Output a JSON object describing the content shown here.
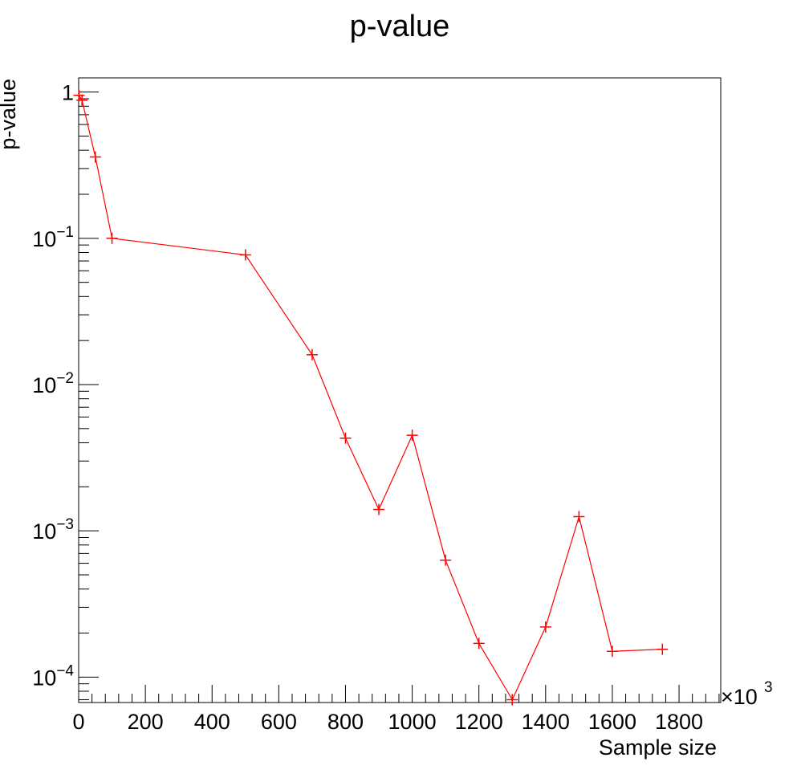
{
  "chart_data": {
    "type": "line",
    "title": "p-value",
    "xlabel": "Sample size",
    "ylabel": "p-value",
    "x_multiplier_label": "×10",
    "x_multiplier_exponent": "3",
    "xlim": [
      0,
      1925
    ],
    "ylim": [
      6.7e-05,
      1.25
    ],
    "y_scale": "log",
    "grid": false,
    "x_ticks": [
      0,
      200,
      400,
      600,
      800,
      1000,
      1200,
      1400,
      1600,
      1800
    ],
    "x_tick_labels": [
      "0",
      "200",
      "400",
      "600",
      "800",
      "1000",
      "1200",
      "1400",
      "1600",
      "1800"
    ],
    "y_ticks": [
      {
        "value": 1,
        "base": "1",
        "exp": ""
      },
      {
        "value": 0.1,
        "base": "10",
        "exp": "−1"
      },
      {
        "value": 0.01,
        "base": "10",
        "exp": "−2"
      },
      {
        "value": 0.001,
        "base": "10",
        "exp": "−3"
      },
      {
        "value": 0.0001,
        "base": "10",
        "exp": "−4"
      }
    ],
    "series": [
      {
        "color": "#ff0000",
        "marker": "plus",
        "x": [
          1,
          10,
          50,
          100,
          500,
          700,
          800,
          900,
          1000,
          1100,
          1200,
          1300,
          1400,
          1500,
          1600,
          1750
        ],
        "y": [
          0.95,
          0.88,
          0.36,
          0.1,
          0.077,
          0.016,
          0.0043,
          0.0014,
          0.0045,
          0.00063,
          0.00017,
          7e-05,
          0.00022,
          0.00125,
          0.00015,
          0.000155
        ]
      }
    ]
  }
}
